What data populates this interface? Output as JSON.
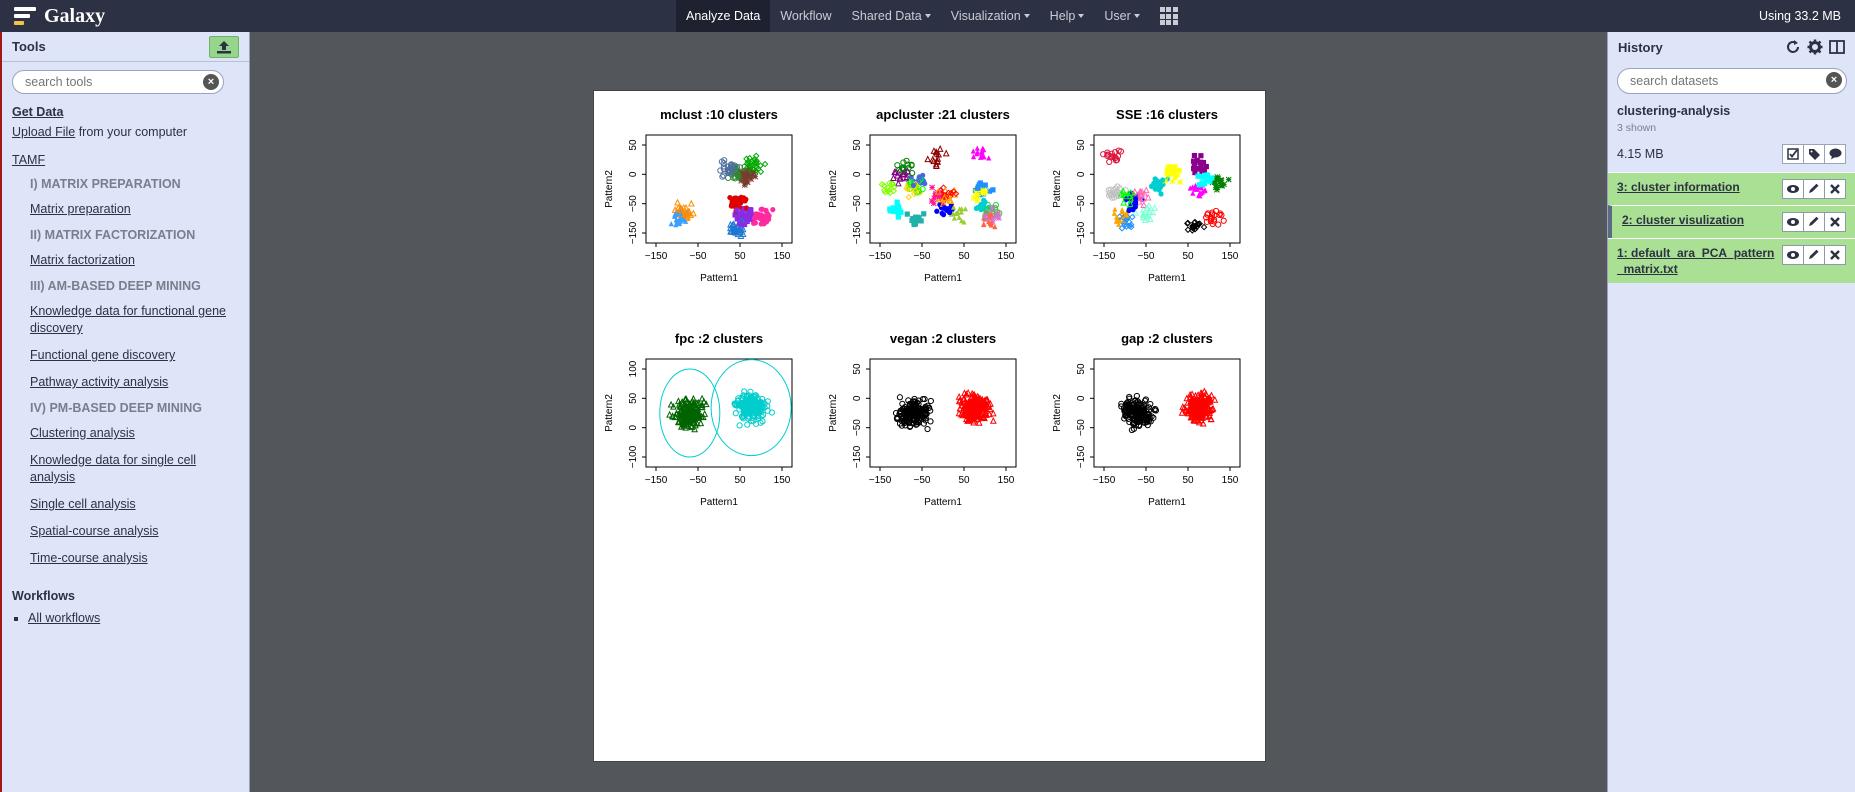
{
  "masthead": {
    "brand": "Galaxy",
    "nav": [
      {
        "label": "Analyze Data",
        "active": true,
        "dropdown": false
      },
      {
        "label": "Workflow",
        "active": false,
        "dropdown": false
      },
      {
        "label": "Shared Data",
        "active": false,
        "dropdown": true
      },
      {
        "label": "Visualization",
        "active": false,
        "dropdown": true
      },
      {
        "label": "Help",
        "active": false,
        "dropdown": true
      },
      {
        "label": "User",
        "active": false,
        "dropdown": true
      }
    ],
    "quota": "Using 33.2 MB"
  },
  "tools": {
    "title": "Tools",
    "search_placeholder": "search tools",
    "get_data": "Get Data",
    "upload_link": "Upload File",
    "upload_suffix": " from your computer",
    "tamf": "TAMF",
    "items": [
      {
        "type": "label",
        "text": "I) MATRIX PREPARATION"
      },
      {
        "type": "link",
        "text": "Matrix preparation"
      },
      {
        "type": "label",
        "text": "II) MATRIX FACTORIZATION"
      },
      {
        "type": "link",
        "text": "Matrix factorization"
      },
      {
        "type": "label",
        "text": "III) AM-BASED DEEP MINING"
      },
      {
        "type": "link",
        "text": "Knowledge data for functional gene discovery"
      },
      {
        "type": "link",
        "text": "Functional gene discovery"
      },
      {
        "type": "link",
        "text": "Pathway activity analysis"
      },
      {
        "type": "label",
        "text": "IV) PM-BASED DEEP MINING"
      },
      {
        "type": "link",
        "text": "Clustering analysis"
      },
      {
        "type": "link",
        "text": "Knowledge data for single cell analysis"
      },
      {
        "type": "link",
        "text": "Single cell analysis"
      },
      {
        "type": "link",
        "text": "Spatial-course analysis"
      },
      {
        "type": "link",
        "text": "Time-course analysis"
      }
    ],
    "workflows_title": "Workflows",
    "workflows_link": "All workflows"
  },
  "history": {
    "title": "History",
    "search_placeholder": "search datasets",
    "name": "clustering-analysis",
    "shown": "3 shown",
    "size": "4.15 MB",
    "datasets": [
      {
        "title": "3: cluster information",
        "active": false
      },
      {
        "title": "2: cluster visulization",
        "active": true
      },
      {
        "title": "1: default_ara_PCA_pattern_matrix.txt",
        "active": false
      }
    ]
  },
  "chart_data": [
    {
      "type": "scatter",
      "title": "mclust :10 clusters",
      "xlabel": "Pattern1",
      "ylabel": "Pattern2",
      "xticks": [
        "−150",
        "−50",
        "50",
        "150"
      ],
      "yticks": [
        "−150",
        "−50",
        "0",
        "50"
      ],
      "clusters": 10
    },
    {
      "type": "scatter",
      "title": "apcluster :21 clusters",
      "xlabel": "Pattern1",
      "ylabel": "Pattern2",
      "xticks": [
        "−150",
        "−50",
        "50",
        "150"
      ],
      "yticks": [
        "−150",
        "−50",
        "0",
        "50"
      ],
      "clusters": 21
    },
    {
      "type": "scatter",
      "title": "SSE :16 clusters",
      "xlabel": "Pattern1",
      "ylabel": "Pattern2",
      "xticks": [
        "−150",
        "−50",
        "50",
        "150"
      ],
      "yticks": [
        "−150",
        "−50",
        "0",
        "50"
      ],
      "clusters": 16
    },
    {
      "type": "scatter",
      "title": "fpc :2 clusters",
      "xlabel": "Pattern1",
      "ylabel": "Pattern2",
      "xticks": [
        "−150",
        "−50",
        "50",
        "150"
      ],
      "yticks": [
        "−100",
        "0",
        "50",
        "100"
      ],
      "clusters": 2
    },
    {
      "type": "scatter",
      "title": "vegan :2 clusters",
      "xlabel": "Pattern1",
      "ylabel": "Pattern2",
      "xticks": [
        "−150",
        "−50",
        "50",
        "150"
      ],
      "yticks": [
        "−150",
        "−50",
        "0",
        "50"
      ],
      "clusters": 2
    },
    {
      "type": "scatter",
      "title": "gap :2 clusters",
      "xlabel": "Pattern1",
      "ylabel": "Pattern2",
      "xticks": [
        "−150",
        "−50",
        "50",
        "150"
      ],
      "yticks": [
        "−150",
        "−50",
        "0",
        "50"
      ],
      "clusters": 2
    }
  ],
  "colors": {
    "masthead": "#2c3143",
    "panel": "#dfe5f9",
    "dataset_ok": "#aae093",
    "palette10": [
      "#2e8b2e",
      "#1f77d4",
      "#e00000",
      "#3aa0ff",
      "#8a2be2",
      "#7a3b2e",
      "#00aa00",
      "#4f6fa0",
      "#ff8c00",
      "#ff2a9d"
    ],
    "palette21": [
      "#00ff00",
      "#ffa500",
      "#0000ff",
      "#ff00ff",
      "#00ffff",
      "#ffff00",
      "#ff0000",
      "#008000",
      "#800080",
      "#00ced1",
      "#9acd32",
      "#1e90ff",
      "#ff1493",
      "#ffd700",
      "#32cd32",
      "#8b0000",
      "#4169e1",
      "#ff6347",
      "#20b2aa",
      "#da70d6",
      "#7fff00"
    ],
    "palette16": [
      "#ff0000",
      "#00ff00",
      "#0000ff",
      "#ff00ff",
      "#00ffff",
      "#ffff00",
      "#000000",
      "#c0c0c0",
      "#ff69b4",
      "#00ced1",
      "#ffa500",
      "#8b008b",
      "#008000",
      "#1e90ff",
      "#dc143c",
      "#7fffd4"
    ],
    "fpc": [
      "#006400",
      "#00cdcd"
    ],
    "two": [
      "#000000",
      "#ff0000"
    ]
  }
}
